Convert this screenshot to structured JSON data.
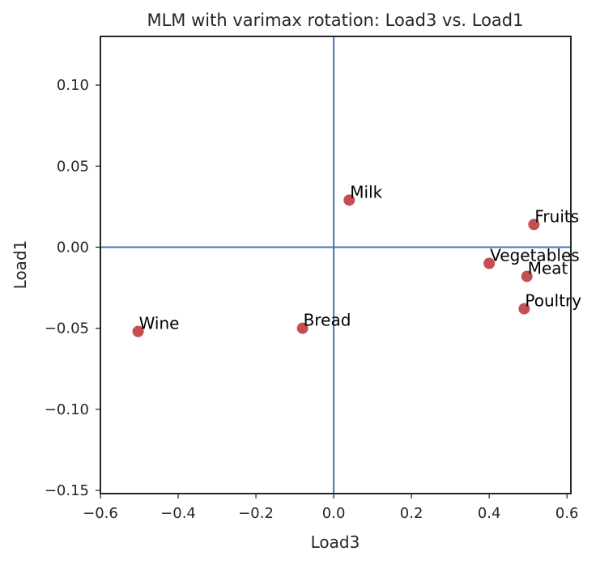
{
  "chart_data": {
    "type": "scatter",
    "title": "MLM with varimax rotation: Load3 vs. Load1",
    "xlabel": "Load3",
    "ylabel": "Load1",
    "xlim": [
      -0.6,
      0.61
    ],
    "ylim": [
      -0.152,
      0.13
    ],
    "xticks": [
      -0.6,
      -0.4,
      -0.2,
      0.0,
      0.2,
      0.4,
      0.6
    ],
    "xtick_labels": [
      "−0.6",
      "−0.4",
      "−0.2",
      "0.0",
      "0.2",
      "0.4",
      "0.6"
    ],
    "yticks": [
      -0.15,
      -0.1,
      -0.05,
      0.0,
      0.05,
      0.1
    ],
    "ytick_labels": [
      "−0.15",
      "−0.10",
      "−0.05",
      "0.00",
      "0.05",
      "0.10"
    ],
    "grid": false,
    "reference_lines": {
      "x": 0.0,
      "y": 0.0,
      "color": "#4c72b0"
    },
    "point_color": "#c44e52",
    "points": [
      {
        "label": "Milk",
        "x": 0.04,
        "y": 0.029
      },
      {
        "label": "Fruits",
        "x": 0.515,
        "y": 0.014
      },
      {
        "label": "Vegetables",
        "x": 0.4,
        "y": -0.01
      },
      {
        "label": "Meat",
        "x": 0.497,
        "y": -0.018
      },
      {
        "label": "Poultry",
        "x": 0.49,
        "y": -0.038
      },
      {
        "label": "Bread",
        "x": -0.08,
        "y": -0.05
      },
      {
        "label": "Wine",
        "x": -0.503,
        "y": -0.052
      }
    ]
  }
}
